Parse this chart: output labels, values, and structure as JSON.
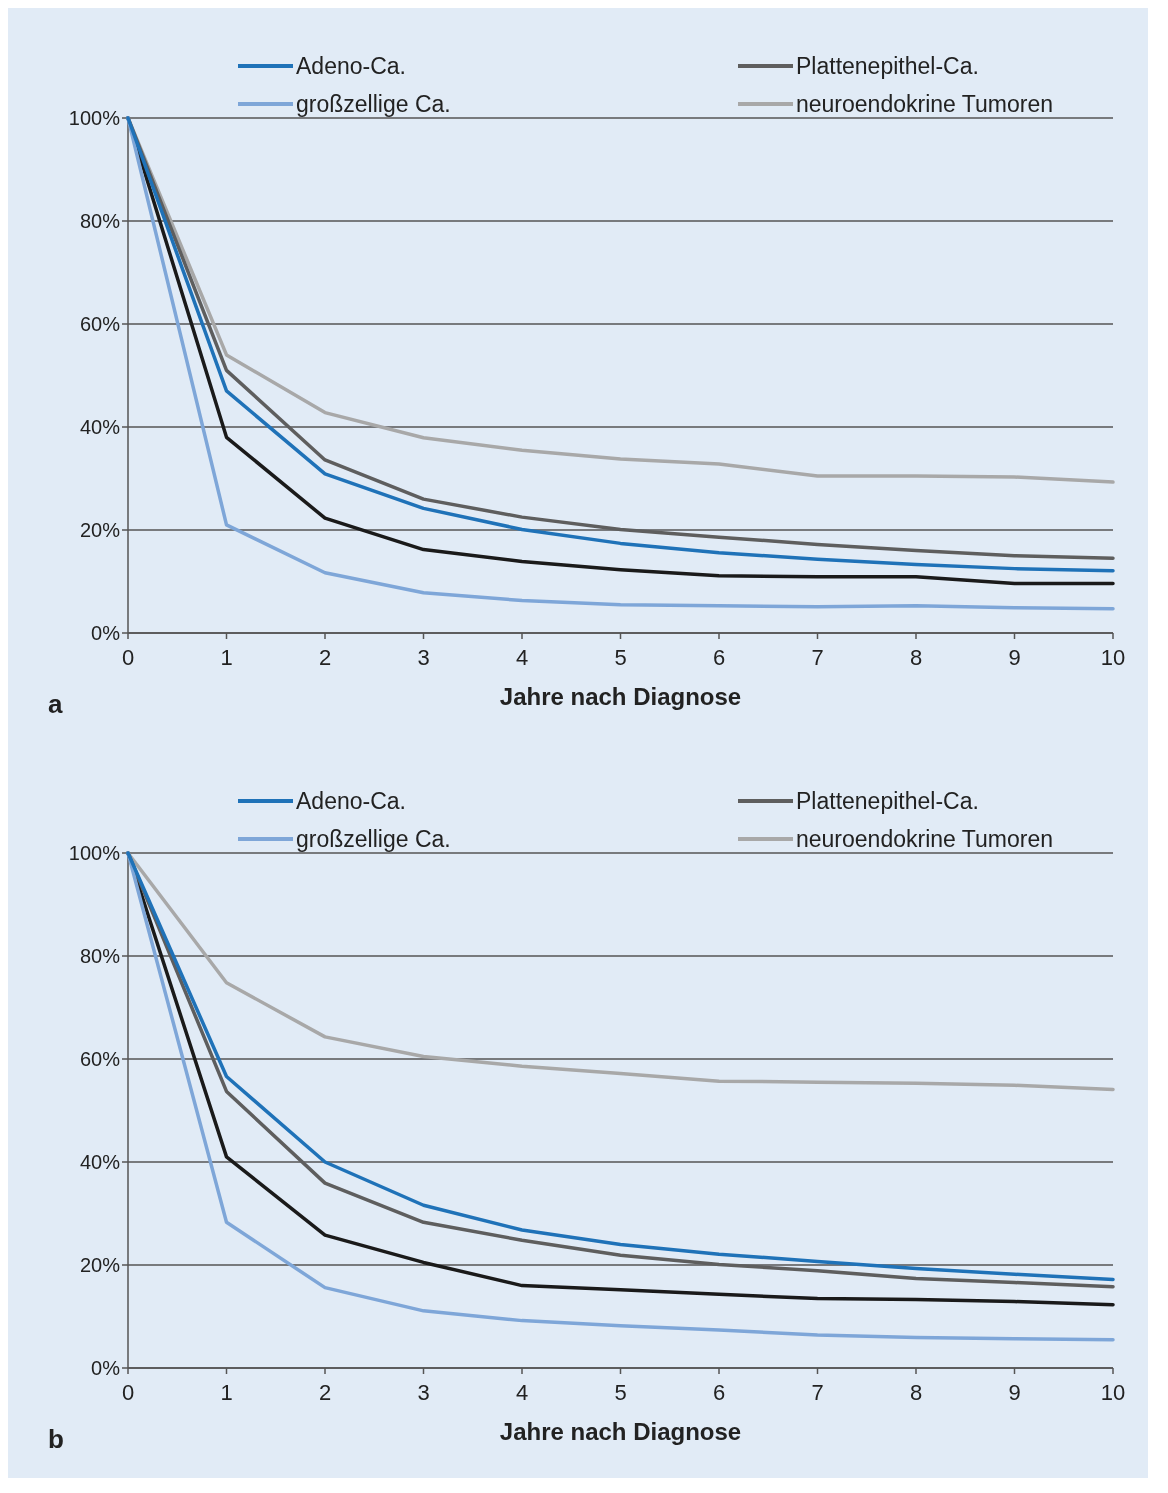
{
  "chart_data": [
    {
      "type": "line",
      "xlabel": "Jahre nach Diagnose",
      "annotations": [
        "a"
      ],
      "x": [
        0,
        1,
        2,
        3,
        4,
        5,
        6,
        7,
        8,
        9,
        10
      ],
      "xlim": [
        0,
        10
      ],
      "xticks": [
        0,
        1,
        2,
        3,
        4,
        5,
        6,
        7,
        8,
        9,
        10
      ],
      "ylim": [
        0,
        100
      ],
      "yticks": [
        {
          "value": 0,
          "label": "0%"
        },
        {
          "value": 20,
          "label": "20%"
        },
        {
          "value": 40,
          "label": "40%"
        },
        {
          "value": 60,
          "label": "60%"
        },
        {
          "value": 80,
          "label": "80%"
        },
        {
          "value": 100,
          "label": "100%"
        }
      ],
      "grid": "y",
      "legend": "top",
      "line_style": "solid",
      "series": [
        {
          "color": "#1a1a1a",
          "values": [
            100,
            38,
            22.3,
            16.2,
            13.9,
            12.3,
            11.1,
            10.9,
            10.9,
            9.6,
            9.6
          ]
        },
        {
          "name": "neuroendokrine Tumoren",
          "color": "#a8a8a8",
          "values": [
            100,
            54,
            42.8,
            37.9,
            35.5,
            33.8,
            32.8,
            30.5,
            30.5,
            30.3,
            29.3
          ]
        },
        {
          "name": "Plattenepithel-Ca.",
          "color": "#5e5e5e",
          "values": [
            100,
            51,
            33.6,
            26,
            22.5,
            20.1,
            18.6,
            17.2,
            16,
            15,
            14.5
          ]
        },
        {
          "name": "großzellige Ca.",
          "color": "#7ea6d8",
          "values": [
            100,
            21,
            11.7,
            7.8,
            6.3,
            5.5,
            5.3,
            5.1,
            5.3,
            4.9,
            4.7
          ]
        },
        {
          "name": "Adeno-Ca.",
          "color": "#1f72b8",
          "values": [
            100,
            47,
            30.9,
            24.2,
            20.1,
            17.4,
            15.6,
            14.3,
            13.3,
            12.5,
            12.1
          ]
        }
      ]
    },
    {
      "type": "line",
      "xlabel": "Jahre nach Diagnose",
      "annotations": [
        "b"
      ],
      "x": [
        0,
        1,
        2,
        3,
        4,
        5,
        6,
        7,
        8,
        9,
        10
      ],
      "xlim": [
        0,
        10
      ],
      "xticks": [
        0,
        1,
        2,
        3,
        4,
        5,
        6,
        7,
        8,
        9,
        10
      ],
      "ylim": [
        0,
        100
      ],
      "yticks": [
        {
          "value": 0,
          "label": "0%"
        },
        {
          "value": 20,
          "label": "20%"
        },
        {
          "value": 40,
          "label": "40%"
        },
        {
          "value": 60,
          "label": "60%"
        },
        {
          "value": 80,
          "label": "80%"
        },
        {
          "value": 100,
          "label": "100%"
        }
      ],
      "grid": "y",
      "legend": "top",
      "line_style": "solid",
      "series": [
        {
          "color": "#1a1a1a",
          "values": [
            100,
            41,
            25.8,
            20.5,
            16,
            15.2,
            14.3,
            13.5,
            13.3,
            12.9,
            12.3
          ]
        },
        {
          "name": "neuroendokrine Tumoren",
          "color": "#a8a8a8",
          "values": [
            100,
            74.8,
            64.3,
            60.5,
            58.6,
            57.2,
            55.7,
            55.5,
            55.3,
            54.9,
            54.1
          ]
        },
        {
          "name": "Plattenepithel-Ca.",
          "color": "#5e5e5e",
          "values": [
            100,
            53.7,
            35.9,
            28.3,
            24.8,
            21.9,
            20.1,
            18.9,
            17.4,
            16.6,
            15.8
          ]
        },
        {
          "name": "großzellige Ca.",
          "color": "#7ea6d8",
          "values": [
            100,
            28.3,
            15.6,
            11.1,
            9.2,
            8.2,
            7.4,
            6.4,
            5.9,
            5.7,
            5.5
          ]
        },
        {
          "name": "Adeno-Ca.",
          "color": "#1f72b8",
          "values": [
            100,
            56.6,
            40,
            31.6,
            26.8,
            24,
            22.1,
            20.7,
            19.3,
            18.2,
            17.2
          ]
        }
      ]
    }
  ]
}
